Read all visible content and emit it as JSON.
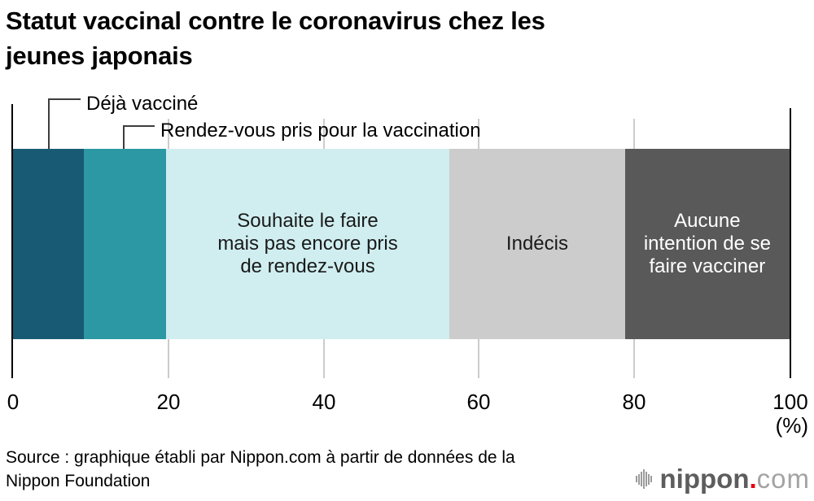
{
  "header": {
    "title_line1": "Statut vaccinal contre le coronavirus chez les",
    "title_line2": "jeunes japonais"
  },
  "chart_data": {
    "type": "bar",
    "stacked": true,
    "orientation": "horizontal",
    "title": "Statut vaccinal contre le coronavirus chez les jeunes japonais",
    "xlim": [
      0,
      100
    ],
    "x_ticks": [
      0,
      20,
      40,
      60,
      80,
      100
    ],
    "x_unit_label": "(%)",
    "grid": true,
    "segments": [
      {
        "label": "Déjà vacciné",
        "value": 9.1,
        "color": "#185a73",
        "label_style": "callout-above"
      },
      {
        "label": "Rendez-vous pris pour la vaccination",
        "value": 10.6,
        "color": "#2b98a3",
        "label_style": "callout-above"
      },
      {
        "label": "Souhaite le faire mais pas encore pris de rendez-vous",
        "label_lines": [
          "Souhaite le faire",
          "mais pas encore pris",
          "de rendez-vous"
        ],
        "value": 36.5,
        "color": "#d0eef0",
        "text_color": "#1a1a1a",
        "label_style": "inside"
      },
      {
        "label": "Indécis",
        "label_lines": [
          "Indécis"
        ],
        "value": 22.6,
        "color": "#cccccc",
        "text_color": "#1a1a1a",
        "label_style": "inside"
      },
      {
        "label": "Aucune intention de se faire vacciner",
        "label_lines": [
          "Aucune",
          "intention de se",
          "faire vacciner"
        ],
        "value": 21.2,
        "color": "#595959",
        "text_color": "#ffffff",
        "label_style": "inside"
      }
    ],
    "colors": {
      "axis": "#000000",
      "gridline": "#cccccc",
      "leader_line": "#3d3d3d"
    }
  },
  "source": {
    "line1": "Source : graphique établi par Nippon.com à partir de données de la",
    "line2": "Nippon Foundation"
  },
  "logo": {
    "icon": "sound-wave-bars-icon",
    "name": "nippon",
    "dot": ".",
    "suffix": "com",
    "brand_red": "#e60012"
  }
}
